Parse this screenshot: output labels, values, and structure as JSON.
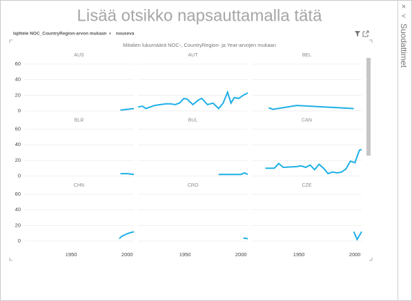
{
  "header": {
    "title": "Lisää otsikko napsauttamalla tätä"
  },
  "sort": {
    "label": "lajittele NOC_CountryRegion-arvon mukaan",
    "order": "nouseva"
  },
  "filters_pane": {
    "title": "Suodattimet"
  },
  "chart_data": {
    "type": "line",
    "title": "Mitalien lukumäärä NOC-, CountryRegion- ja Year-arvojen mukaan",
    "color": "#1aafe6",
    "xlim": [
      1908,
      2006
    ],
    "ylim": [
      0,
      60
    ],
    "xticks": [
      1950,
      2000
    ],
    "yticks": [
      0,
      20,
      40,
      60
    ],
    "grid": true,
    "panels": [
      {
        "title": "AUS",
        "x": [
          1994,
          2000,
          2006
        ],
        "values": [
          1,
          2,
          3
        ]
      },
      {
        "title": "AUT",
        "x": [
          1908,
          1912,
          1915,
          1919,
          1923,
          1928,
          1933,
          1937,
          1941,
          1945,
          1949,
          1952,
          1957,
          1962,
          1965,
          1970,
          1975,
          1980,
          1984,
          1988,
          1991,
          1994,
          1998,
          2002,
          2006
        ],
        "values": [
          5,
          6,
          3,
          5,
          7,
          8,
          9,
          9,
          8,
          10,
          16,
          15,
          8,
          14,
          16,
          8,
          10,
          3,
          10,
          24,
          10,
          17,
          16,
          20,
          23
        ]
      },
      {
        "title": "BEL",
        "x": [
          1923,
          1927,
          1948,
          1999
        ],
        "values": [
          4,
          2,
          7,
          3
        ]
      },
      {
        "title": "BLR",
        "x": [
          1994,
          2000,
          2006
        ],
        "values": [
          3,
          3,
          2
        ]
      },
      {
        "title": "BUL",
        "x": [
          1980,
          2000,
          2003,
          2006
        ],
        "values": [
          2,
          2,
          4,
          2
        ]
      },
      {
        "title": "CAN",
        "x": [
          1920,
          1928,
          1932,
          1936,
          1948,
          1952,
          1956,
          1960,
          1964,
          1968,
          1972,
          1976,
          1980,
          1984,
          1988,
          1992,
          1996,
          2000,
          2004,
          2006
        ],
        "values": [
          10,
          10,
          16,
          11,
          12,
          13,
          11,
          14,
          8,
          15,
          10,
          3,
          5,
          4,
          5,
          9,
          19,
          17,
          33,
          34
        ]
      },
      {
        "title": "CHN",
        "x": [
          1993,
          1995,
          1998,
          2001,
          2006
        ],
        "values": [
          3,
          6,
          8,
          10,
          12
        ]
      },
      {
        "title": "CRO",
        "x": [
          2002,
          2006
        ],
        "values": [
          4,
          3
        ]
      },
      {
        "title": "CZE",
        "x": [
          1999,
          2002,
          2006
        ],
        "values": [
          12,
          2,
          12
        ]
      }
    ]
  }
}
